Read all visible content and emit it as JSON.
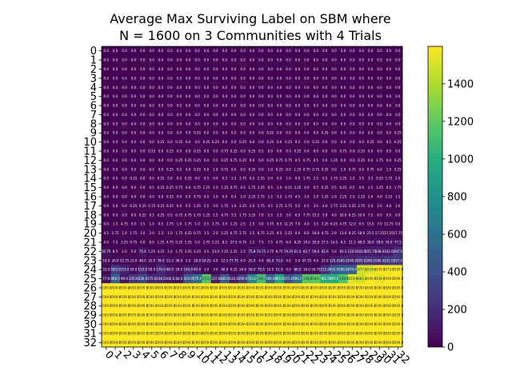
{
  "chart_data": {
    "type": "heatmap",
    "title_lines": [
      "Average Max Surviving Label on SBM where",
      "N = 1600 on 3 Communities with 4 Trials"
    ],
    "xlabel": "",
    "ylabel": "",
    "x_ticks": [
      "0",
      "1",
      "2",
      "3",
      "4",
      "5",
      "6",
      "7",
      "8",
      "9",
      "10",
      "11",
      "12",
      "13",
      "14",
      "15",
      "16",
      "17",
      "18",
      "19",
      "20",
      "21",
      "22",
      "23",
      "24",
      "25",
      "26",
      "27",
      "28",
      "29",
      "30",
      "31",
      "32"
    ],
    "y_ticks": [
      "0",
      "1",
      "2",
      "3",
      "4",
      "5",
      "6",
      "7",
      "8",
      "9",
      "10",
      "11",
      "12",
      "13",
      "14",
      "15",
      "16",
      "17",
      "18",
      "19",
      "20",
      "21",
      "22",
      "23",
      "24",
      "25",
      "26",
      "27",
      "28",
      "29",
      "30",
      "31",
      "32"
    ],
    "colormap": "viridis",
    "color_range": [
      0,
      1599
    ],
    "colorbar_ticks": [
      0,
      200,
      400,
      600,
      800,
      1000,
      1200,
      1400
    ],
    "cell_annotations": "each cell carries a small printed value; rows 0-8 read 0.0, higher rows rise through fractional values to about 1599 in the lower-right region",
    "rows": [
      [
        0,
        0,
        0,
        0,
        0,
        0,
        0,
        0,
        0,
        0,
        0,
        0,
        0,
        0,
        0,
        0,
        0,
        0,
        0,
        0,
        0,
        0,
        0,
        0,
        0,
        0,
        0,
        0,
        0,
        0,
        0,
        0,
        0
      ],
      [
        0,
        0,
        0,
        0,
        0,
        0,
        0,
        0,
        0,
        0,
        0,
        0,
        0,
        0,
        0,
        0,
        0,
        0,
        0,
        0,
        0,
        0,
        0,
        0,
        0,
        0,
        0,
        0,
        0,
        0,
        0,
        0,
        0
      ],
      [
        0,
        0,
        0,
        0,
        0,
        0,
        0,
        0,
        0,
        0,
        0,
        0,
        0,
        0,
        0,
        0,
        0,
        0,
        0,
        0,
        0,
        0,
        0,
        0,
        0,
        0,
        0,
        0,
        0,
        0,
        0,
        0,
        0
      ],
      [
        0,
        0,
        0,
        0,
        0,
        0,
        0,
        0,
        0,
        0,
        0,
        0,
        0,
        0,
        0,
        0,
        0,
        0,
        0,
        0,
        0,
        0,
        0,
        0,
        0,
        0,
        0,
        0,
        0,
        0,
        0,
        0,
        0
      ],
      [
        0,
        0,
        0,
        0,
        0,
        0,
        0,
        0,
        0,
        0,
        0,
        0,
        0,
        0,
        0,
        0,
        0,
        0,
        0,
        0,
        0,
        0,
        0,
        0,
        0,
        0,
        0,
        0,
        0,
        0,
        0,
        0,
        0
      ],
      [
        0,
        0,
        0,
        0,
        0,
        0,
        0,
        0,
        0,
        0,
        0,
        0,
        0,
        0,
        0,
        0,
        0,
        0,
        0,
        0,
        0,
        0,
        0,
        0,
        0,
        0,
        0,
        0,
        0,
        0,
        0,
        0,
        0
      ],
      [
        0,
        0,
        0,
        0,
        0,
        0,
        0,
        0,
        0,
        0,
        0,
        0,
        0,
        0,
        0,
        0,
        0,
        0,
        0,
        0,
        0,
        0,
        0,
        0,
        0,
        0,
        0,
        0,
        0,
        0,
        0,
        0,
        0
      ],
      [
        0,
        0,
        0,
        0,
        0,
        0,
        0,
        0,
        0,
        0,
        0,
        0,
        0,
        0,
        0,
        0,
        0,
        0,
        0,
        0,
        0,
        0,
        0,
        0,
        0,
        0,
        0,
        0,
        0,
        0,
        0,
        0,
        0
      ],
      [
        0,
        0,
        0,
        0,
        0,
        0,
        0,
        0,
        0,
        0,
        0,
        0,
        0,
        0,
        0,
        0,
        0,
        0,
        0,
        0,
        0,
        0,
        0,
        0,
        0,
        0,
        0,
        0,
        0,
        0,
        0,
        0,
        0
      ],
      [
        0,
        0,
        0,
        0,
        0,
        0,
        0,
        0,
        0,
        0,
        0.25,
        0,
        0,
        0,
        0,
        0,
        0,
        0,
        0.25,
        0,
        0,
        0,
        0,
        0,
        0.25,
        0,
        0,
        0,
        0,
        0,
        0,
        0,
        0.25
      ],
      [
        0,
        0,
        0,
        0,
        0,
        0,
        0.25,
        0,
        0.25,
        0,
        0,
        0.25,
        0.25,
        0,
        0,
        0.25,
        0,
        0,
        0.25,
        0,
        0.25,
        0.5,
        0,
        0.25,
        0,
        0,
        0,
        0,
        0,
        0.25,
        0,
        0.5,
        0.25
      ],
      [
        0,
        0,
        0,
        0,
        0,
        0.25,
        0,
        0.25,
        0,
        0,
        0.25,
        0,
        0,
        0.75,
        0.25,
        0,
        0.25,
        0.5,
        0,
        0,
        0,
        0.25,
        0,
        0,
        0,
        0,
        0.75,
        0,
        0.25,
        0,
        0,
        0,
        0
      ],
      [
        0,
        0,
        0,
        0,
        0,
        0,
        0,
        0,
        0.25,
        0.25,
        0.25,
        0,
        0.5,
        0.25,
        0.75,
        0.25,
        0,
        0,
        0.25,
        0.75,
        0.75,
        0.5,
        0.75,
        0.5,
        0,
        1.25,
        0,
        0,
        0.25,
        0,
        1.75,
        0,
        0.25
      ],
      [
        0,
        0,
        0,
        0,
        0,
        0,
        0,
        0.25,
        0,
        0,
        0.25,
        0,
        1.0,
        0.75,
        0,
        0,
        0.25,
        0,
        1.0,
        0.25,
        0,
        1.25,
        0.75,
        0.75,
        0.25,
        0,
        1.0,
        0.75,
        0,
        0.75,
        0,
        1.5,
        0.25
      ],
      [
        0,
        0,
        0,
        0.25,
        0,
        0,
        0.25,
        0,
        0,
        0.25,
        0,
        0.5,
        0,
        0.5,
        1.5,
        1.75,
        0.5,
        2.25,
        2.0,
        0.5,
        1.0,
        0,
        1.75,
        2.5,
        0.5,
        1.75,
        2.25,
        1.0,
        3.5,
        3.5,
        0.25,
        1.75,
        2.0
      ],
      [
        0,
        0,
        0,
        0,
        0,
        0.5,
        0.25,
        0.25,
        0.75,
        0,
        0.75,
        1.25,
        1.0,
        1.25,
        0.75,
        4.5,
        1.75,
        2.25,
        0.5,
        1.0,
        0.25,
        2.25,
        0,
        0.5,
        0.25,
        0.5,
        0.25,
        0.5,
        0,
        1.5,
        1.25,
        0.5,
        1.75
      ],
      [
        0,
        0,
        0,
        0,
        0,
        0,
        0,
        0.25,
        0,
        0.5,
        0.75,
        0.5,
        1.0,
        0,
        0.5,
        1.0,
        2.25,
        2.75,
        1.5,
        3.5,
        1.75,
        4.5,
        3.0,
        1.0,
        1.25,
        2.0,
        2.25,
        2.5,
        2.25,
        2.0,
        4.0,
        2.25,
        1.5
      ],
      [
        0,
        0,
        0,
        0.25,
        0.25,
        0.75,
        0.25,
        0.25,
        0,
        0.5,
        1.25,
        2.5,
        0,
        1.75,
        1.0,
        2.25,
        2.0,
        2.75,
        4.5,
        2.75,
        2.75,
        5.5,
        4.5,
        3.5,
        4.0,
        2.75,
        3.25,
        5.25,
        2.75,
        2.0,
        2.0,
        4.0,
        2.0
      ],
      [
        0,
        0,
        0,
        0,
        0.25,
        0.5,
        0.25,
        0.5,
        0.75,
        0.75,
        2.75,
        1.25,
        1.5,
        4.75,
        3.5,
        1.75,
        3.25,
        7.0,
        5.5,
        2.5,
        3.0,
        6.5,
        7.75,
        15.5,
        5.0,
        4.0,
        10.0,
        6.25,
        10.0,
        7.5,
        0,
        0,
        0
      ],
      [
        0,
        1.5,
        4.75,
        0,
        1.5,
        1.0,
        0.5,
        2.75,
        1.0,
        1.75,
        1.0,
        2.5,
        2.75,
        3.0,
        1.25,
        2.5,
        2.5,
        3.0,
        3.75,
        6.5,
        11.25,
        7.0,
        4.0,
        3.5,
        2.25,
        6.25,
        4.75,
        12.0,
        9.5,
        15.5,
        7.0,
        11.75,
        0
      ],
      [
        4.5,
        2.75,
        1.0,
        1.75,
        1.0,
        2.0,
        2.5,
        1.0,
        1.75,
        4.25,
        0.75,
        1.5,
        2.0,
        2.25,
        6.75,
        2.75,
        2.5,
        6.75,
        2.25,
        8.5,
        2.25,
        0.0,
        8.0,
        16.0,
        4.75,
        2.0,
        13.0,
        8.25,
        18.0,
        25.5,
        17.25,
        17.25,
        17.75
      ],
      [
        4.0,
        7.5,
        3.25,
        9.75,
        0,
        6.0,
        1.25,
        4.75,
        0.25,
        1.25,
        5.0,
        2.75,
        5.25,
        8.5,
        27.5,
        6.75,
        3.5,
        7.5,
        7.5,
        4.75,
        6.0,
        8.25,
        19.0,
        35.0,
        27.5,
        14.5,
        8.5,
        21.5,
        49.5,
        38.0,
        78.0,
        74.0,
        77.5
      ],
      [
        62.75,
        8.5,
        2.0,
        5.0,
        75.0,
        5.25,
        4.25,
        1.0,
        1.75,
        3.25,
        3.25,
        3.5,
        23.0,
        7.25,
        2.25,
        2.5,
        75.8,
        74.75,
        3.75,
        8.75,
        74.25,
        61.0,
        62.7,
        59.0,
        62.0,
        5.0,
        62.5,
        110.0,
        103.0,
        105.75,
        108.0,
        102.0,
        207.0
      ],
      [
        53.0,
        28.0,
        33.75,
        23.0,
        46.0,
        33.0,
        78.0,
        22.0,
        36.0,
        5.0,
        28.0,
        54.25,
        4.0,
        12.5,
        77.75,
        4.0,
        25.0,
        4.0,
        65.0,
        75.0,
        4.0,
        5.0,
        47.75,
        4.0,
        25.0,
        125.0,
        160.0,
        140.0,
        205.0,
        206.0,
        180.0,
        251.0,
        257.0
      ],
      [
        33.0,
        283.0,
        153.0,
        50.0,
        153.0,
        50.0,
        176.0,
        89.0,
        29.0,
        140.0,
        85.0,
        3.0,
        3.0,
        40.0,
        4.25,
        24.0,
        56.0,
        75.0,
        10.0,
        51.0,
        0.0,
        80.0,
        16.0,
        16.75,
        212.0,
        432.0,
        506.0,
        474.0,
        1477.0,
        1510.0,
        1599.0,
        1573.0,
        1599.0
      ],
      [
        77.0,
        466.0,
        99.0,
        235.0,
        336.0,
        175.0,
        158.0,
        100.0,
        84.0,
        433.0,
        575.0,
        1153.0,
        137.0,
        460.0,
        120.0,
        290.0,
        723.0,
        1102.0,
        506.0,
        902.0,
        371.0,
        591.0,
        1158.0,
        1180.0,
        961.0,
        987.0,
        1140.0,
        1519.0,
        1481.0,
        1599.0,
        1528.0,
        1599.0,
        1599.0
      ],
      [
        1599.0,
        1599.0,
        1599.0,
        1599.0,
        1599.0,
        1599.0,
        1599.0,
        1599.0,
        1599.0,
        1599.0,
        1599.0,
        1599.0,
        1599.0,
        1599.0,
        1599.0,
        1599.0,
        1599.0,
        1599.0,
        1599.0,
        1599.0,
        1599.0,
        1599.0,
        1599.0,
        1599.0,
        1599.0,
        1599.0,
        1599.0,
        1599.0,
        1599.0,
        1599.0,
        1599.0,
        1599.0,
        1599.0
      ],
      [
        1599.0,
        1599.0,
        1599.0,
        1599.0,
        1599.0,
        1599.0,
        1599.0,
        1599.0,
        1599.0,
        1599.0,
        1599.0,
        1599.0,
        1599.0,
        1599.0,
        1599.0,
        1599.0,
        1599.0,
        1599.0,
        1599.0,
        1599.0,
        1599.0,
        1599.0,
        1599.0,
        1599.0,
        1599.0,
        1599.0,
        1599.0,
        1599.0,
        1599.0,
        1599.0,
        1599.0,
        1599.0,
        1599.0
      ],
      [
        1599.0,
        1599.0,
        1599.0,
        1599.0,
        1599.0,
        1599.0,
        1599.0,
        1599.0,
        1599.0,
        1599.0,
        1599.0,
        1599.0,
        1599.0,
        1599.0,
        1599.0,
        1599.0,
        1599.0,
        1599.0,
        1599.0,
        1599.0,
        1599.0,
        1599.0,
        1599.0,
        1599.0,
        1599.0,
        1599.0,
        1599.0,
        1599.0,
        1599.0,
        1599.0,
        1599.0,
        1599.0,
        1599.0
      ],
      [
        1599.0,
        1599.0,
        1599.0,
        1599.0,
        1599.0,
        1599.0,
        1599.0,
        1599.0,
        1599.0,
        1599.0,
        1599.0,
        1599.0,
        1599.0,
        1599.0,
        1599.0,
        1599.0,
        1599.0,
        1599.0,
        1599.0,
        1599.0,
        1599.0,
        1599.0,
        1599.0,
        1599.0,
        1599.0,
        1599.0,
        1599.0,
        1599.0,
        1599.0,
        1599.0,
        1599.0,
        1599.0,
        1599.0
      ],
      [
        1599.0,
        1599.0,
        1599.0,
        1599.0,
        1599.0,
        1599.0,
        1599.0,
        1599.0,
        1599.0,
        1599.0,
        1599.0,
        1599.0,
        1599.0,
        1599.0,
        1599.0,
        1599.0,
        1599.0,
        1599.0,
        1599.0,
        1599.0,
        1599.0,
        1599.0,
        1599.0,
        1599.0,
        1599.0,
        1599.0,
        1599.0,
        1599.0,
        1599.0,
        1599.0,
        1599.0,
        1599.0,
        1599.0
      ],
      [
        1599.0,
        1599.0,
        1599.0,
        1599.0,
        1599.0,
        1599.0,
        1599.0,
        1599.0,
        1599.0,
        1599.0,
        1599.0,
        1599.0,
        1599.0,
        1599.0,
        1599.0,
        1599.0,
        1599.0,
        1599.0,
        1599.0,
        1599.0,
        1599.0,
        1599.0,
        1599.0,
        1599.0,
        1599.0,
        1599.0,
        1599.0,
        1599.0,
        1599.0,
        1599.0,
        1599.0,
        1599.0,
        1599.0
      ],
      [
        1599.0,
        1599.0,
        1599.0,
        1599.0,
        1599.0,
        1599.0,
        1599.0,
        1599.0,
        1599.0,
        1599.0,
        1599.0,
        1599.0,
        1599.0,
        1599.0,
        1599.0,
        1599.0,
        1599.0,
        1599.0,
        1599.0,
        1599.0,
        1599.0,
        1599.0,
        1599.0,
        1599.0,
        1599.0,
        1599.0,
        1599.0,
        1599.0,
        1599.0,
        1599.0,
        1599.0,
        1599.0,
        1599.0
      ]
    ]
  }
}
